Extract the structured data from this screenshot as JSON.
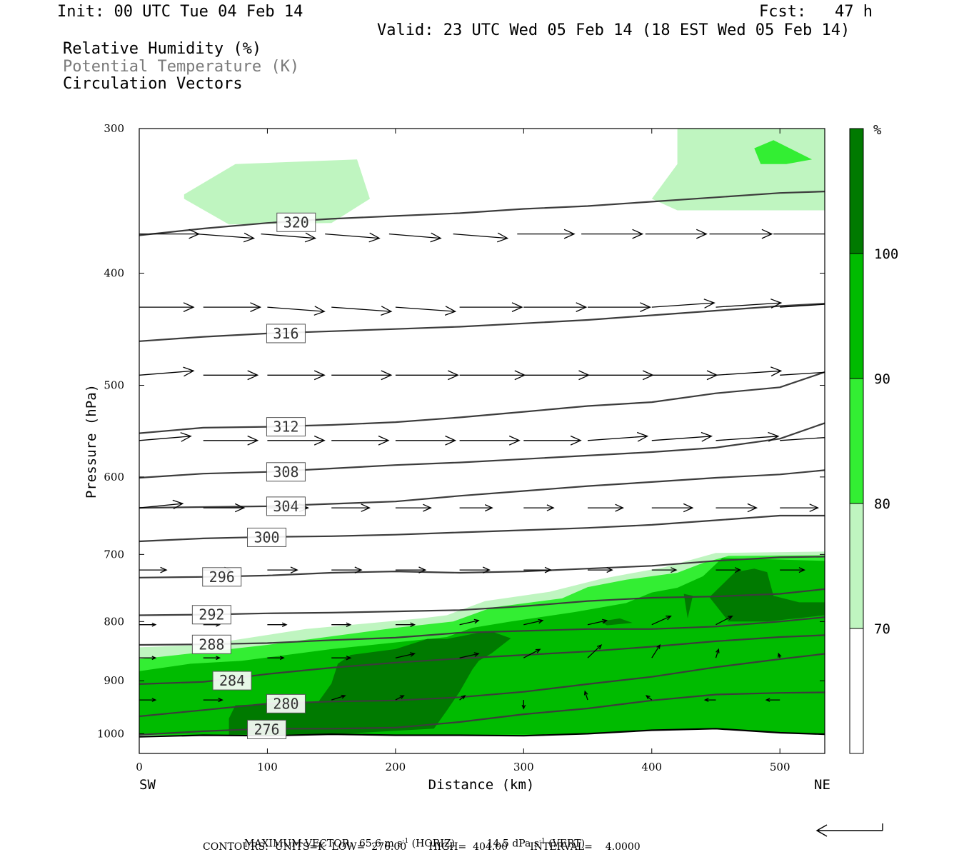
{
  "header": {
    "init": "Init: 00 UTC Tue 04 Feb 14",
    "fcst": "Fcst:   47 h",
    "valid": "Valid: 23 UTC Wed 05 Feb 14 (18 EST Wed 05 Feb 14)",
    "field1": "Relative Humidity (%)",
    "field2": "Potential Temperature (K)",
    "field3": "Circulation Vectors"
  },
  "footer": {
    "line1_left": "MAXIMUM VECTOR:  65.6 m s",
    "line1_exp1": "-1",
    "line1_mid": " (HORIZ)",
    "line1_right": "14.5 dPa s",
    "line1_exp2": "-1",
    "line1_end": " (VERT)",
    "line2": "CONTOURS:  UNITS=K  LOW=  276.00       HIGH=  404.00       INTERVAL=    4.0000"
  },
  "colors": {
    "rh_70_80": "#bff5c0",
    "rh_80_90": "#33ee33",
    "rh_90_100": "#00bb00",
    "rh_100": "#007a00",
    "contour": "#3c3c3c",
    "vector": "#000000"
  },
  "chart_data": {
    "type": "cross-section",
    "xlabel": "Distance (km)",
    "ylabel": "Pressure (hPa)",
    "xlim": [
      0,
      535
    ],
    "ylim": [
      1040,
      300
    ],
    "y_scale": "log",
    "x_ticks": [
      0,
      100,
      200,
      300,
      400,
      500
    ],
    "y_ticks": [
      300,
      400,
      500,
      600,
      700,
      800,
      900,
      1000
    ],
    "x_end_labels": {
      "left": "SW",
      "right": "NE"
    },
    "colorbar": {
      "unit": "%",
      "levels": [
        70,
        80,
        90,
        100
      ],
      "labels": [
        "70",
        "80",
        "90",
        "100"
      ]
    },
    "x_grid": [
      0,
      50,
      100,
      150,
      200,
      250,
      300,
      350,
      400,
      450,
      500,
      535
    ],
    "isentropes": [
      {
        "theta": 320,
        "p": [
          371,
          366,
          362,
          359,
          357,
          355,
          352,
          350,
          347,
          344,
          341,
          340
        ],
        "label_x": 108
      },
      {
        "theta": 316,
        "p": [
          458,
          454,
          451,
          449,
          447,
          445,
          442,
          439,
          435,
          431,
          427,
          425
        ],
        "label_x": 100
      },
      {
        "theta": 312,
        "p": [
          550,
          544,
          543,
          541,
          538,
          533,
          527,
          521,
          517,
          508,
          502,
          487
        ],
        "label_x": 100
      },
      {
        "theta": 308,
        "p": [
          601,
          596,
          594,
          590,
          586,
          583,
          579,
          575,
          571,
          566,
          556,
          539
        ],
        "label_x": 100
      },
      {
        "theta": 304,
        "p": [
          638,
          637,
          636,
          633,
          630,
          623,
          617,
          611,
          606,
          601,
          597,
          592
        ],
        "label_x": 100
      },
      {
        "theta": 300,
        "p": [
          682,
          678,
          676,
          675,
          673,
          670,
          667,
          664,
          660,
          654,
          648,
          648
        ],
        "label_x": 85
      },
      {
        "theta": 296,
        "p": [
          733,
          732,
          730,
          726,
          724,
          726,
          724,
          720,
          716,
          709,
          704,
          703
        ],
        "label_x": 50
      },
      {
        "theta": 292,
        "p": [
          790,
          789,
          787,
          786,
          784,
          782,
          776,
          768,
          763,
          761,
          757,
          750
        ],
        "label_x": 42
      },
      {
        "theta": 288,
        "p": [
          838,
          837,
          835,
          830,
          826,
          818,
          815,
          812,
          812,
          808,
          800,
          793
        ],
        "label_x": 42
      },
      {
        "theta": 284,
        "p": [
          906,
          902,
          888,
          877,
          868,
          861,
          855,
          849,
          841,
          832,
          825,
          822
        ],
        "label_x": 58
      },
      {
        "theta": 280,
        "p": [
          966,
          954,
          942,
          938,
          936,
          930,
          920,
          906,
          893,
          876,
          862,
          853
        ],
        "label_x": 100
      },
      {
        "theta": 276,
        "p": [
          1002,
          995,
          990,
          990,
          988,
          977,
          962,
          951,
          936,
          925,
          922,
          921
        ],
        "label_x": 85
      }
    ],
    "surface_p": [
      1006,
      1003,
      1004,
      1001,
      1003,
      1003,
      1004,
      1000,
      993,
      990,
      998,
      1001
    ],
    "rh": {
      "bands": [
        {
          "level": 70,
          "polygons": [
            [
              [
                35,
                342
              ],
              [
                75,
                322
              ],
              [
                170,
                319
              ],
              [
                180,
                345
              ],
              [
                150,
                362
              ],
              [
                70,
                363
              ],
              [
                35,
                345
              ]
            ],
            [
              [
                420,
                300
              ],
              [
                535,
                300
              ],
              [
                535,
                353
              ],
              [
                420,
                353
              ],
              [
                400,
                345
              ],
              [
                420,
                322
              ]
            ],
            [
              [
                0,
                842
              ],
              [
                50,
                838
              ],
              [
                130,
                812
              ],
              [
                220,
                795
              ],
              [
                240,
                790
              ],
              [
                270,
                768
              ],
              [
                320,
                754
              ],
              [
                360,
                735
              ],
              [
                410,
                718
              ],
              [
                450,
                698
              ],
              [
                535,
                696
              ],
              [
                535,
                1005
              ],
              [
                0,
                1005
              ]
            ]
          ]
        },
        {
          "level": 80,
          "polygons": [
            [
              [
                480,
                312
              ],
              [
                495,
                307
              ],
              [
                525,
                319
              ],
              [
                505,
                322
              ],
              [
                485,
                322
              ]
            ],
            [
              [
                0,
                862
              ],
              [
                30,
                855
              ],
              [
                100,
                838
              ],
              [
                200,
                810
              ],
              [
                245,
                800
              ],
              [
                275,
                778
              ],
              [
                330,
                764
              ],
              [
                350,
                747
              ],
              [
                380,
                736
              ],
              [
                420,
                726
              ],
              [
                440,
                712
              ],
              [
                460,
                702
              ],
              [
                535,
                701
              ],
              [
                535,
                1003
              ],
              [
                0,
                1003
              ]
            ]
          ]
        },
        {
          "level": 90,
          "polygons": [
            [
              [
                0,
                883
              ],
              [
                40,
                870
              ],
              [
                80,
                865
              ],
              [
                150,
                845
              ],
              [
                240,
                825
              ],
              [
                260,
                810
              ],
              [
                290,
                800
              ],
              [
                340,
                785
              ],
              [
                380,
                771
              ],
              [
                400,
                755
              ],
              [
                420,
                748
              ],
              [
                440,
                731
              ],
              [
                455,
                705
              ],
              [
                535,
                709
              ],
              [
                535,
                1002
              ],
              [
                0,
                1002
              ]
            ]
          ]
        },
        {
          "level": 100,
          "polygons": [
            [
              [
                70,
                1002
              ],
              [
                70,
                970
              ],
              [
                75,
                945
              ],
              [
                140,
                938
              ],
              [
                150,
                905
              ],
              [
                155,
                870
              ],
              [
                165,
                855
              ],
              [
                200,
                845
              ],
              [
                225,
                828
              ],
              [
                240,
                828
              ],
              [
                265,
                818
              ],
              [
                275,
                816
              ],
              [
                290,
                827
              ],
              [
                275,
                852
              ],
              [
                265,
                865
              ],
              [
                260,
                880
              ],
              [
                250,
                920
              ],
              [
                240,
                955
              ],
              [
                230,
                990
              ],
              [
                160,
                1000
              ]
            ],
            [
              [
                465,
                725
              ],
              [
                480,
                720
              ],
              [
                490,
                725
              ],
              [
                495,
                760
              ],
              [
                515,
                770
              ],
              [
                535,
                770
              ],
              [
                535,
                790
              ],
              [
                490,
                800
              ],
              [
                460,
                800
              ],
              [
                445,
                762
              ]
            ],
            [
              [
                425,
                757
              ],
              [
                432,
                760
              ],
              [
                428,
                795
              ]
            ],
            [
              [
                360,
                800
              ],
              [
                375,
                795
              ],
              [
                385,
                802
              ],
              [
                365,
                806
              ]
            ]
          ]
        }
      ]
    },
    "vectors": [
      {
        "p": 370,
        "x": [
          0,
          45,
          95,
          145,
          195,
          245,
          295,
          345,
          395,
          445,
          495,
          535
        ],
        "u": [
          44,
          42,
          40,
          40,
          38,
          40,
          42,
          45,
          45,
          46,
          47,
          0
        ],
        "w": [
          0,
          -1,
          -1,
          -1,
          -1,
          -1,
          0,
          0,
          0,
          0,
          0,
          0
        ]
      },
      {
        "p": 428,
        "x": [
          0,
          50,
          100,
          150,
          200,
          250,
          300,
          350,
          400,
          450,
          500
        ],
        "u": [
          40,
          42,
          42,
          44,
          44,
          46,
          46,
          46,
          46,
          48,
          50
        ],
        "w": [
          0,
          0,
          -1,
          -1,
          -1,
          0,
          0,
          0,
          1,
          1,
          1
        ]
      },
      {
        "p": 490,
        "x": [
          0,
          50,
          100,
          150,
          200,
          250,
          300,
          350,
          400,
          450,
          500,
          535
        ],
        "u": [
          40,
          40,
          42,
          44,
          46,
          48,
          48,
          48,
          48,
          48,
          50,
          0
        ],
        "w": [
          1,
          0,
          0,
          0,
          0,
          0,
          0,
          0,
          0,
          1,
          1,
          0
        ]
      },
      {
        "p": 558,
        "x": [
          0,
          50,
          100,
          150,
          200,
          250,
          300,
          350,
          400,
          450,
          500
        ],
        "u": [
          38,
          40,
          42,
          42,
          44,
          44,
          42,
          44,
          44,
          46,
          48
        ],
        "w": [
          1,
          0,
          0,
          0,
          0,
          0,
          0,
          1,
          1,
          1,
          1
        ]
      },
      {
        "p": 638,
        "x": [
          0,
          50,
          100,
          150,
          200,
          250,
          300,
          350,
          400,
          450,
          500
        ],
        "u": [
          32,
          30,
          30,
          28,
          26,
          24,
          22,
          26,
          30,
          30,
          28
        ],
        "w": [
          1,
          0,
          0,
          0,
          0,
          0,
          0,
          0,
          0,
          0,
          0
        ]
      },
      {
        "p": 722,
        "x": [
          0,
          50,
          100,
          150,
          200,
          250,
          300,
          350,
          400,
          450,
          500
        ],
        "u": [
          20,
          20,
          22,
          22,
          22,
          22,
          20,
          18,
          18,
          18,
          18
        ],
        "w": [
          0,
          0,
          0,
          0,
          0,
          0,
          0,
          0,
          0,
          0,
          0
        ]
      },
      {
        "p": 805,
        "x": [
          0,
          50,
          100,
          150,
          200,
          250,
          300,
          350,
          400,
          450
        ],
        "u": [
          12,
          12,
          14,
          14,
          14,
          14,
          14,
          14,
          14,
          12
        ],
        "w": [
          0,
          0,
          0,
          0,
          0,
          1,
          1,
          1,
          2,
          2
        ]
      },
      {
        "p": 860,
        "x": [
          0,
          50,
          100,
          150,
          200,
          250,
          300,
          350,
          400,
          450,
          500
        ],
        "u": [
          12,
          12,
          12,
          14,
          14,
          14,
          12,
          10,
          6,
          2,
          -1
        ],
        "w": [
          0,
          0,
          0,
          0,
          1,
          1,
          2,
          3,
          3,
          2,
          1
        ]
      },
      {
        "p": 935,
        "x": [
          0,
          50,
          100,
          150,
          200,
          250,
          300,
          350,
          400,
          450,
          500
        ],
        "u": [
          12,
          14,
          12,
          10,
          6,
          4,
          0,
          -2,
          -4,
          -8,
          -10
        ],
        "w": [
          0,
          0,
          1,
          1,
          1,
          1,
          -2,
          2,
          1,
          0,
          0
        ]
      }
    ]
  }
}
